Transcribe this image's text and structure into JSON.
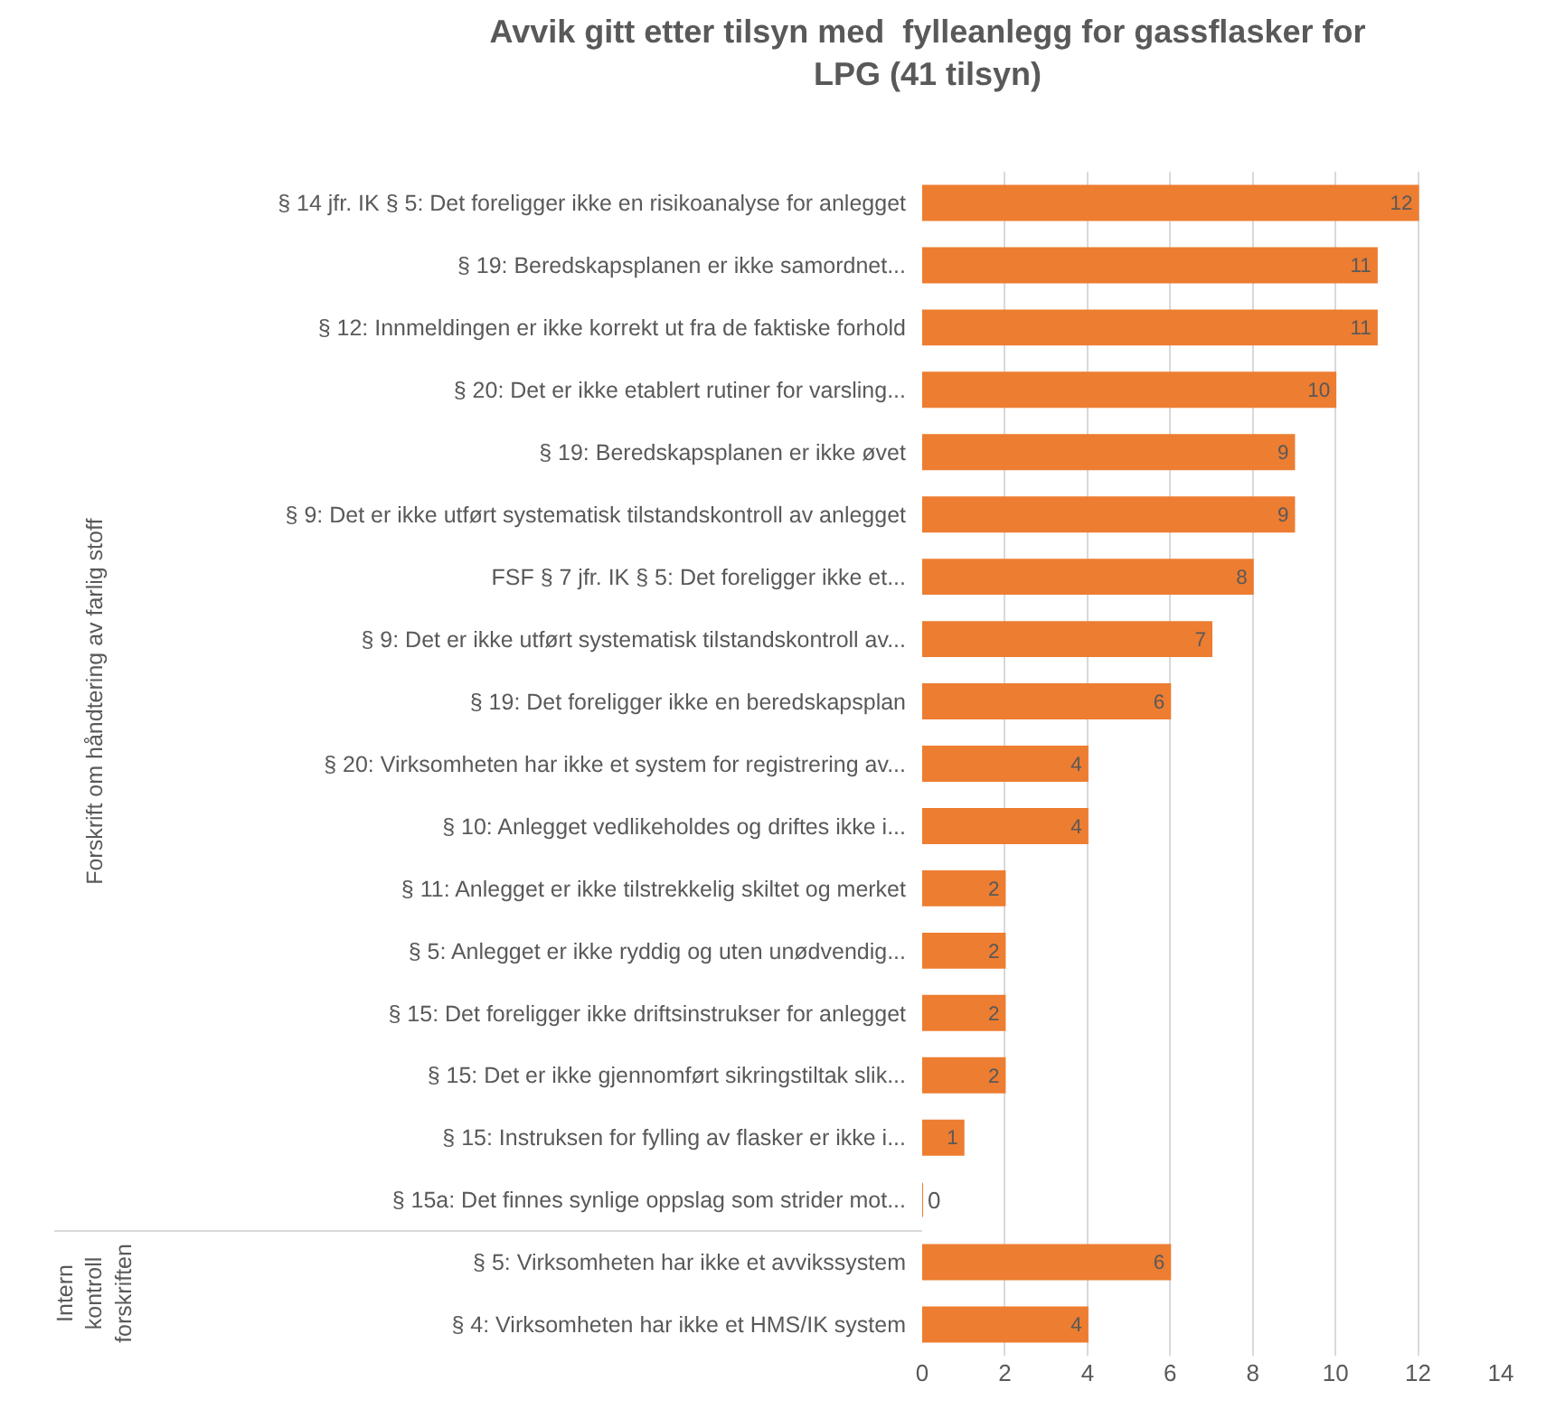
{
  "chart_data": {
    "type": "bar",
    "orientation": "horizontal",
    "title": "Avvik gitt etter tilsyn med  fylleanlegg for gassflasker for LPG (41 tilsyn)",
    "categories": [
      "§ 14 jfr. IK § 5: Det foreligger ikke en risikoanalyse for anlegget",
      "§ 19: Beredskapsplanen er ikke samordnet...",
      "§ 12: Innmeldingen er ikke korrekt ut fra de faktiske forhold",
      "§ 20: Det er ikke etablert rutiner for varsling...",
      "§ 19: Beredskapsplanen er ikke øvet",
      "§ 9: Det er ikke utført systematisk tilstandskontroll av anlegget",
      "FSF § 7 jfr. IK § 5: Det foreligger ikke et...",
      "§ 9: Det er ikke utført systematisk tilstandskontroll av...",
      "§ 19: Det foreligger ikke en beredskapsplan",
      "§ 20: Virksomheten har ikke et system for registrering av...",
      "§ 10: Anlegget vedlikeholdes og driftes ikke i...",
      "§ 11: Anlegget er ikke tilstrekkelig skiltet og merket",
      "§ 5: Anlegget er ikke ryddig og uten unødvendig...",
      "§ 15: Det foreligger ikke driftsinstrukser for anlegget",
      "§ 15: Det er ikke gjennomført sikringstiltak slik...",
      "§ 15: Instruksen for fylling av flasker er ikke i...",
      "§ 15a: Det finnes synlige oppslag som strider mot...",
      "§ 5: Virksomheten har ikke et avvikssystem",
      "§ 4: Virksomheten har ikke et HMS/IK system"
    ],
    "values": [
      12,
      11,
      11,
      10,
      9,
      9,
      8,
      7,
      6,
      4,
      4,
      2,
      2,
      2,
      2,
      1,
      0,
      6,
      4
    ],
    "color": "#ed7d31",
    "xlim": [
      0,
      14
    ],
    "xticks": [
      0,
      2,
      4,
      6,
      8,
      10,
      12,
      14
    ],
    "grid": "x",
    "data_labels": true,
    "annotations": [
      "Forskrift om håndtering av farlig stoff",
      "Intern kontroll forskriften"
    ]
  }
}
